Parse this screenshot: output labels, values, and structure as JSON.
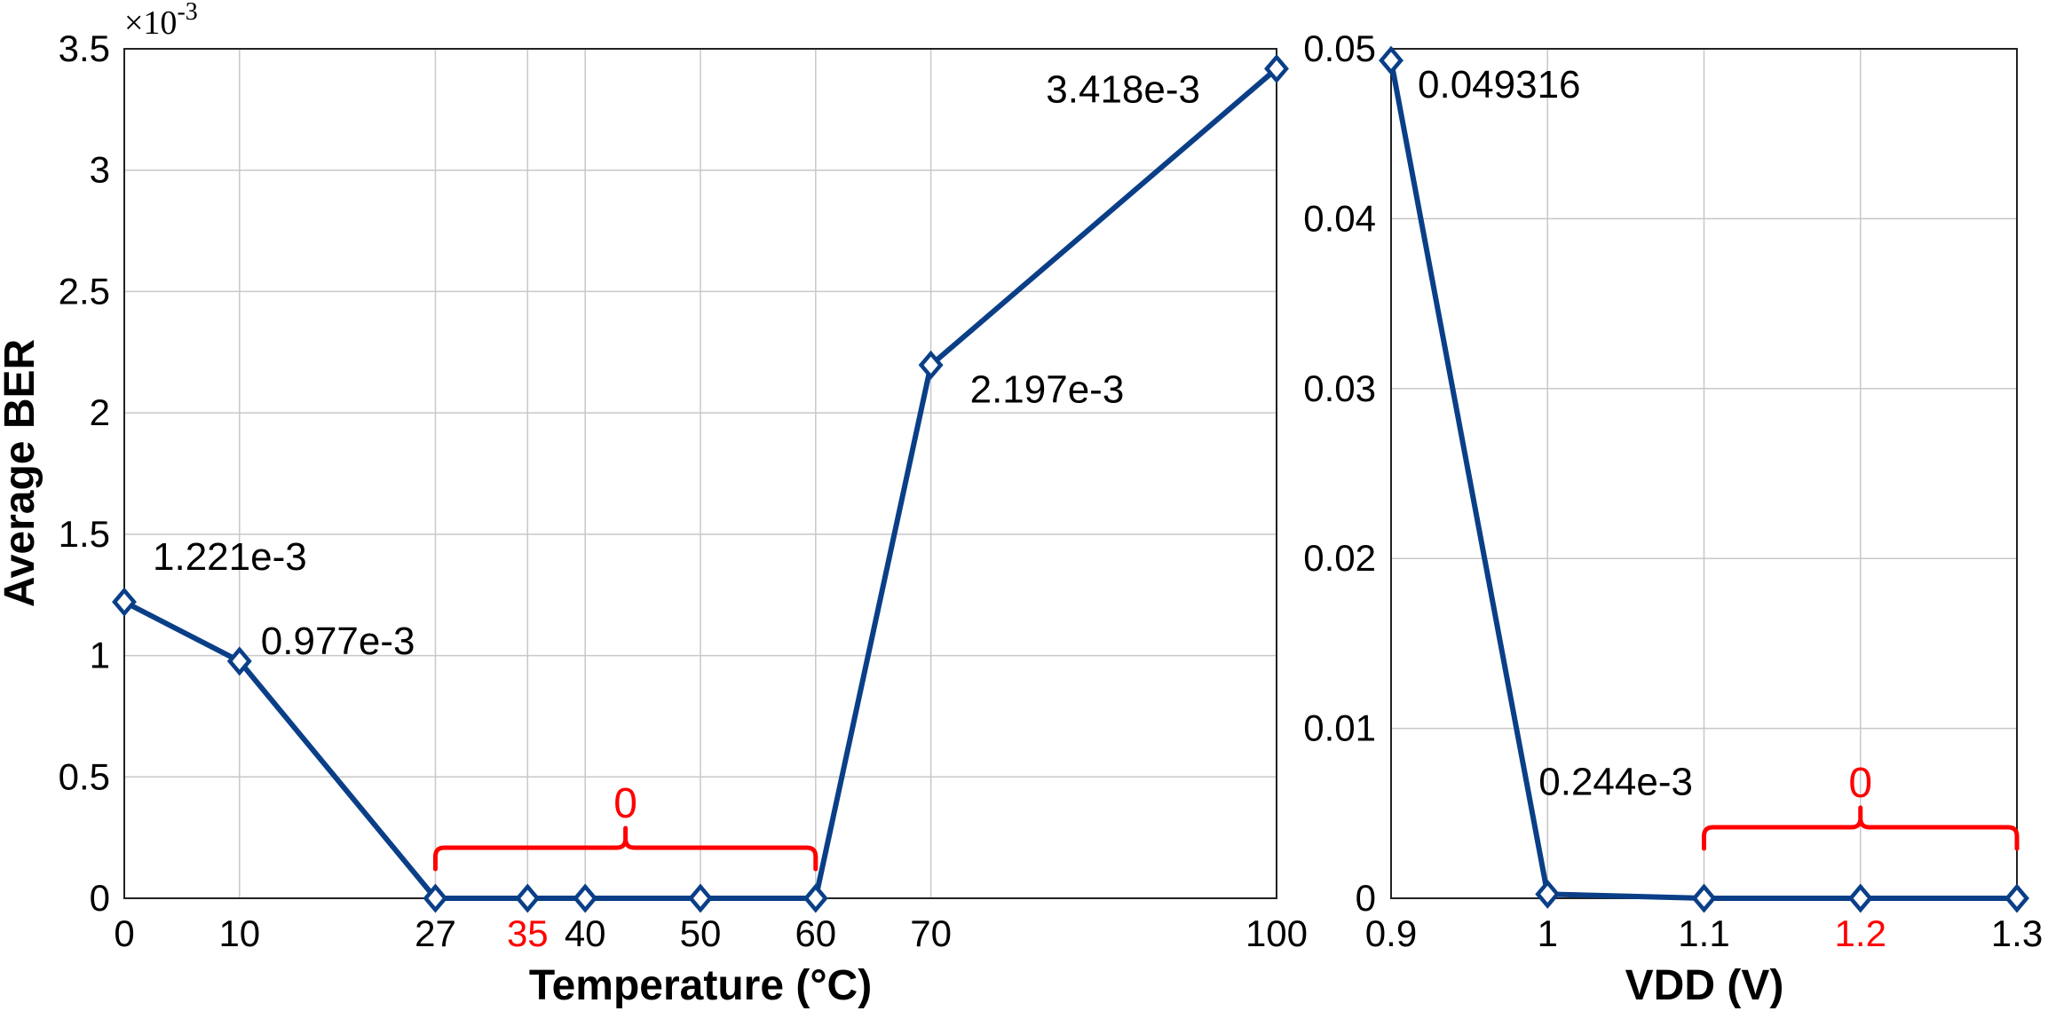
{
  "chart_data": [
    {
      "type": "line",
      "xlabel": "Temperature (°C)",
      "ylabel": "Average BER",
      "exponent": {
        "base": "×10",
        "power": "-3"
      },
      "x": [
        0,
        10,
        27,
        35,
        40,
        50,
        60,
        70,
        100
      ],
      "y": [
        1.221,
        0.977,
        0,
        0,
        0,
        0,
        0,
        2.197,
        3.418
      ],
      "xticks": [
        {
          "label": "0",
          "value": 0,
          "red": false
        },
        {
          "label": "10",
          "value": 10,
          "red": false
        },
        {
          "label": "27",
          "value": 27,
          "red": false
        },
        {
          "label": "35",
          "value": 35,
          "red": true
        },
        {
          "label": "40",
          "value": 40,
          "red": false
        },
        {
          "label": "50",
          "value": 50,
          "red": false
        },
        {
          "label": "60",
          "value": 60,
          "red": false
        },
        {
          "label": "70",
          "value": 70,
          "red": false
        },
        {
          "label": "100",
          "value": 100,
          "red": false
        }
      ],
      "yticks": [
        "0",
        "0.5",
        "1",
        "1.5",
        "2",
        "2.5",
        "3",
        "3.5"
      ],
      "ytick_values": [
        0,
        0.5,
        1,
        1.5,
        2,
        2.5,
        3,
        3.5
      ],
      "ylim": [
        0,
        3.5
      ],
      "grid": true,
      "annotations": [
        {
          "text": "1.221e-3",
          "x": 0,
          "y": 1.221
        },
        {
          "text": "0.977e-3",
          "x": 10,
          "y": 0.977
        },
        {
          "text": "2.197e-3",
          "x": 70,
          "y": 2.197
        },
        {
          "text": "3.418e-3",
          "x": 100,
          "y": 3.418
        }
      ],
      "zero_bracket": {
        "label": "0",
        "from": 27,
        "to": 60
      }
    },
    {
      "type": "line",
      "xlabel": "VDD (V)",
      "x": [
        0.9,
        1.0,
        1.1,
        1.2,
        1.3
      ],
      "y": [
        0.049316,
        0.000244,
        0,
        0,
        0
      ],
      "xticks": [
        {
          "label": "0.9",
          "value": 0.9,
          "red": false
        },
        {
          "label": "1",
          "value": 1.0,
          "red": false
        },
        {
          "label": "1.1",
          "value": 1.1,
          "red": false
        },
        {
          "label": "1.2",
          "value": 1.2,
          "red": true
        },
        {
          "label": "1.3",
          "value": 1.3,
          "red": false
        }
      ],
      "yticks": [
        "0",
        "0.01",
        "0.02",
        "0.03",
        "0.04",
        "0.05"
      ],
      "ytick_values": [
        0,
        0.01,
        0.02,
        0.03,
        0.04,
        0.05
      ],
      "ylim": [
        0,
        0.05
      ],
      "grid": true,
      "annotations": [
        {
          "text": "0.049316",
          "x": 0.9,
          "y": 0.049316
        },
        {
          "text": "0.244e-3",
          "x": 1.0,
          "y": 0.000244
        }
      ],
      "zero_bracket": {
        "label": "0",
        "from": 1.1,
        "to": 1.3
      }
    }
  ],
  "colors": {
    "series": "#0a3f88",
    "highlight": "#ff0000",
    "grid": "#c8c8c8"
  }
}
